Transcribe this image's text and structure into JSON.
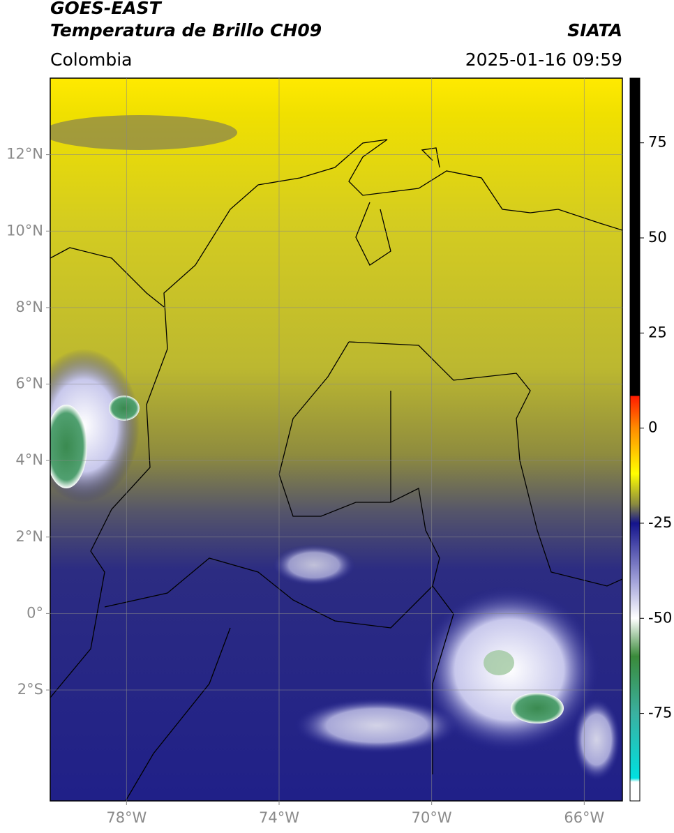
{
  "header": {
    "title_line1": "GOES-EAST",
    "title_line2": "Temperatura de Brillo CH09",
    "source": "SIATA",
    "region": "Colombia",
    "datetime": "2025-01-16 09:59"
  },
  "map": {
    "xlim": [
      -80,
      -65
    ],
    "ylim": [
      -4.9,
      14
    ],
    "xticks": [
      {
        "value": -78,
        "label": "78°W"
      },
      {
        "value": -74,
        "label": "74°W"
      },
      {
        "value": -70,
        "label": "70°W"
      },
      {
        "value": -66,
        "label": "66°W"
      }
    ],
    "yticks": [
      {
        "value": 12,
        "label": "12°N"
      },
      {
        "value": 10,
        "label": "10°N"
      },
      {
        "value": 8,
        "label": "8°N"
      },
      {
        "value": 6,
        "label": "6°N"
      },
      {
        "value": 4,
        "label": "4°N"
      },
      {
        "value": 2,
        "label": "2°N"
      },
      {
        "value": 0,
        "label": "0°"
      },
      {
        "value": -2,
        "label": "2°S"
      }
    ],
    "grid": true
  },
  "colorbar": {
    "lim": [
      -98,
      92
    ],
    "ticks": [
      75,
      50,
      25,
      0,
      -25,
      -50,
      -75
    ],
    "colormap": [
      {
        "value": 92,
        "color": "#000000"
      },
      {
        "value": 8.5,
        "color": "#000000"
      },
      {
        "value": 8.5,
        "color": "#ff1a00"
      },
      {
        "value": 0,
        "color": "#ff8c00"
      },
      {
        "value": -12,
        "color": "#ffff00"
      },
      {
        "value": -20,
        "color": "#8a8a40"
      },
      {
        "value": -25,
        "color": "#14148c"
      },
      {
        "value": -40,
        "color": "#a0a0d8"
      },
      {
        "value": -50,
        "color": "#ffffff"
      },
      {
        "value": -60,
        "color": "#3a8a3a"
      },
      {
        "value": -75,
        "color": "#3ab0a0"
      },
      {
        "value": -92,
        "color": "#00e0e0"
      },
      {
        "value": -93,
        "color": "#ffffff"
      },
      {
        "value": -98,
        "color": "#ffffff"
      }
    ]
  }
}
